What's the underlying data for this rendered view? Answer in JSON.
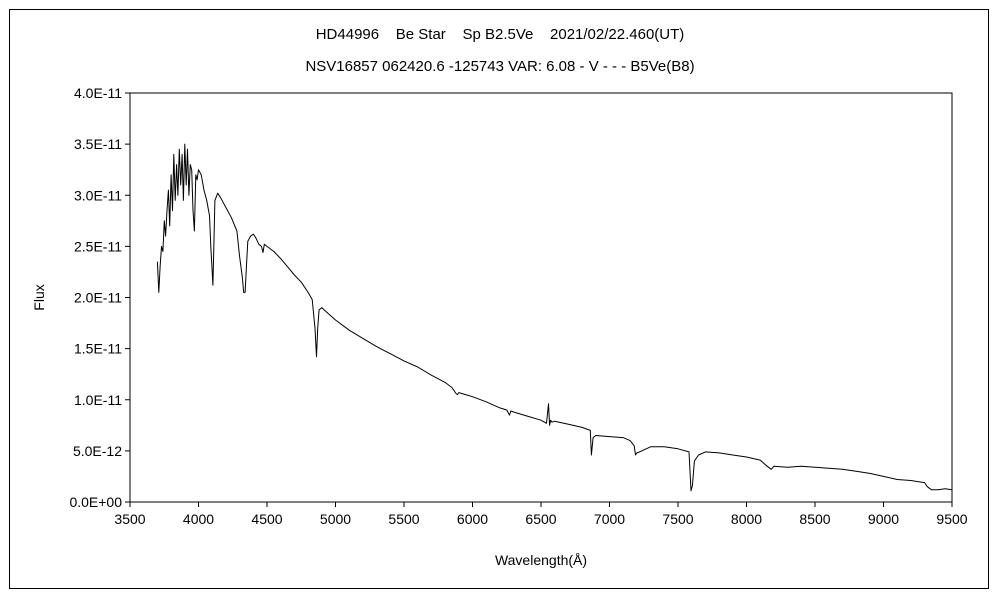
{
  "chart_data": {
    "type": "line",
    "title": "HD44996    Be Star    Sp B2.5Ve    2021/02/22.460(UT)",
    "subtitle": "NSV16857 062420.6 -125743 VAR: 6.08 - V - - - B5Ve(B8)",
    "xlabel": "Wavelength(Å)",
    "ylabel": "Flux",
    "xlim": [
      3500,
      9500
    ],
    "ylim": [
      0,
      4e-11
    ],
    "x_ticks": [
      3500,
      4000,
      4500,
      5000,
      5500,
      6000,
      6500,
      7000,
      7500,
      8000,
      8500,
      9000,
      9500
    ],
    "y_ticks": [
      0,
      5e-12,
      1e-11,
      1.5e-11,
      2e-11,
      2.5e-11,
      3e-11,
      3.5e-11,
      4e-11
    ],
    "y_tick_labels": [
      "0.0E+00",
      "5.0E-12",
      "1.0E-11",
      "1.5E-11",
      "2.0E-11",
      "2.5E-11",
      "3.0E-11",
      "3.5E-11",
      "4.0E-11"
    ],
    "grid": false,
    "legend": "none",
    "line_color": "#000000",
    "series": [
      {
        "x": [
          3700,
          3710,
          3720,
          3730,
          3740,
          3750,
          3760,
          3770,
          3780,
          3790,
          3800,
          3810,
          3820,
          3830,
          3840,
          3850,
          3860,
          3870,
          3880,
          3890,
          3900,
          3910,
          3920,
          3930,
          3940,
          3950,
          3960,
          3970,
          3980,
          3990,
          4000,
          4020,
          4040,
          4060,
          4080,
          4090,
          4100,
          4105,
          4110,
          4120,
          4140,
          4160,
          4200,
          4240,
          4280,
          4300,
          4320,
          4330,
          4340,
          4350,
          4360,
          4380,
          4400,
          4420,
          4440,
          4460,
          4471,
          4480,
          4500,
          4550,
          4600,
          4650,
          4700,
          4750,
          4800,
          4830,
          4850,
          4861,
          4870,
          4880,
          4900,
          4950,
          5000,
          5100,
          5200,
          5300,
          5400,
          5500,
          5600,
          5700,
          5800,
          5850,
          5870,
          5880,
          5890,
          5900,
          5950,
          6000,
          6100,
          6200,
          6250,
          6270,
          6280,
          6300,
          6400,
          6500,
          6540,
          6555,
          6563,
          6570,
          6580,
          6600,
          6700,
          6800,
          6860,
          6868,
          6880,
          6900,
          7000,
          7100,
          7150,
          7180,
          7190,
          7200,
          7220,
          7250,
          7300,
          7400,
          7500,
          7580,
          7595,
          7605,
          7620,
          7650,
          7700,
          7800,
          7900,
          8000,
          8100,
          8150,
          8180,
          8200,
          8300,
          8400,
          8500,
          8600,
          8700,
          8800,
          8900,
          9000,
          9100,
          9200,
          9250,
          9300,
          9320,
          9350,
          9400,
          9450,
          9500
        ],
        "y": [
          2.35e-11,
          2.05e-11,
          2.3e-11,
          2.5e-11,
          2.45e-11,
          2.75e-11,
          2.6e-11,
          2.85e-11,
          3.05e-11,
          2.7e-11,
          3.2e-11,
          2.85e-11,
          3.4e-11,
          2.95e-11,
          3.3e-11,
          3e-11,
          3.45e-11,
          3.1e-11,
          3.4e-11,
          2.95e-11,
          3.5e-11,
          3.1e-11,
          3.45e-11,
          3e-11,
          3.3e-11,
          3.25e-11,
          2.85e-11,
          2.65e-11,
          3.2e-11,
          3.15e-11,
          3.25e-11,
          3.2e-11,
          3.05e-11,
          2.95e-11,
          2.8e-11,
          2.5e-11,
          2.25e-11,
          2.12e-11,
          2.4e-11,
          2.95e-11,
          3.02e-11,
          2.98e-11,
          2.88e-11,
          2.78e-11,
          2.65e-11,
          2.4e-11,
          2.2e-11,
          2.05e-11,
          2.05e-11,
          2.3e-11,
          2.55e-11,
          2.6e-11,
          2.62e-11,
          2.58e-11,
          2.52e-11,
          2.5e-11,
          2.44e-11,
          2.52e-11,
          2.5e-11,
          2.45e-11,
          2.38e-11,
          2.3e-11,
          2.22e-11,
          2.15e-11,
          2.05e-11,
          1.98e-11,
          1.7e-11,
          1.42e-11,
          1.7e-11,
          1.88e-11,
          1.9e-11,
          1.84e-11,
          1.78e-11,
          1.68e-11,
          1.6e-11,
          1.52e-11,
          1.45e-11,
          1.38e-11,
          1.32e-11,
          1.24e-11,
          1.17e-11,
          1.12e-11,
          1.08e-11,
          1.06e-11,
          1.05e-11,
          1.07e-11,
          1.05e-11,
          1.03e-11,
          9.8e-12,
          9.2e-12,
          9e-12,
          8.5e-12,
          8.9e-12,
          8.8e-12,
          8.4e-12,
          8e-12,
          7.7e-12,
          9.6e-12,
          7.5e-12,
          8e-12,
          7.8e-12,
          7.9e-12,
          7.6e-12,
          7.3e-12,
          7e-12,
          4.6e-12,
          6.3e-12,
          6.5e-12,
          6.4e-12,
          6.3e-12,
          6e-12,
          5.5e-12,
          4.6e-12,
          4.8e-12,
          4.9e-12,
          5.1e-12,
          5.4e-12,
          5.4e-12,
          5.2e-12,
          4.9e-12,
          1.1e-12,
          1.6e-12,
          4e-12,
          4.6e-12,
          4.9e-12,
          4.8e-12,
          4.6e-12,
          4.4e-12,
          4.1e-12,
          3.5e-12,
          3.2e-12,
          3.5e-12,
          3.4e-12,
          3.5e-12,
          3.4e-12,
          3.3e-12,
          3.2e-12,
          3e-12,
          2.8e-12,
          2.5e-12,
          2.2e-12,
          2.1e-12,
          2e-12,
          1.9e-12,
          1.5e-12,
          1.2e-12,
          1.2e-12,
          1.3e-12,
          1.2e-12
        ]
      }
    ]
  }
}
